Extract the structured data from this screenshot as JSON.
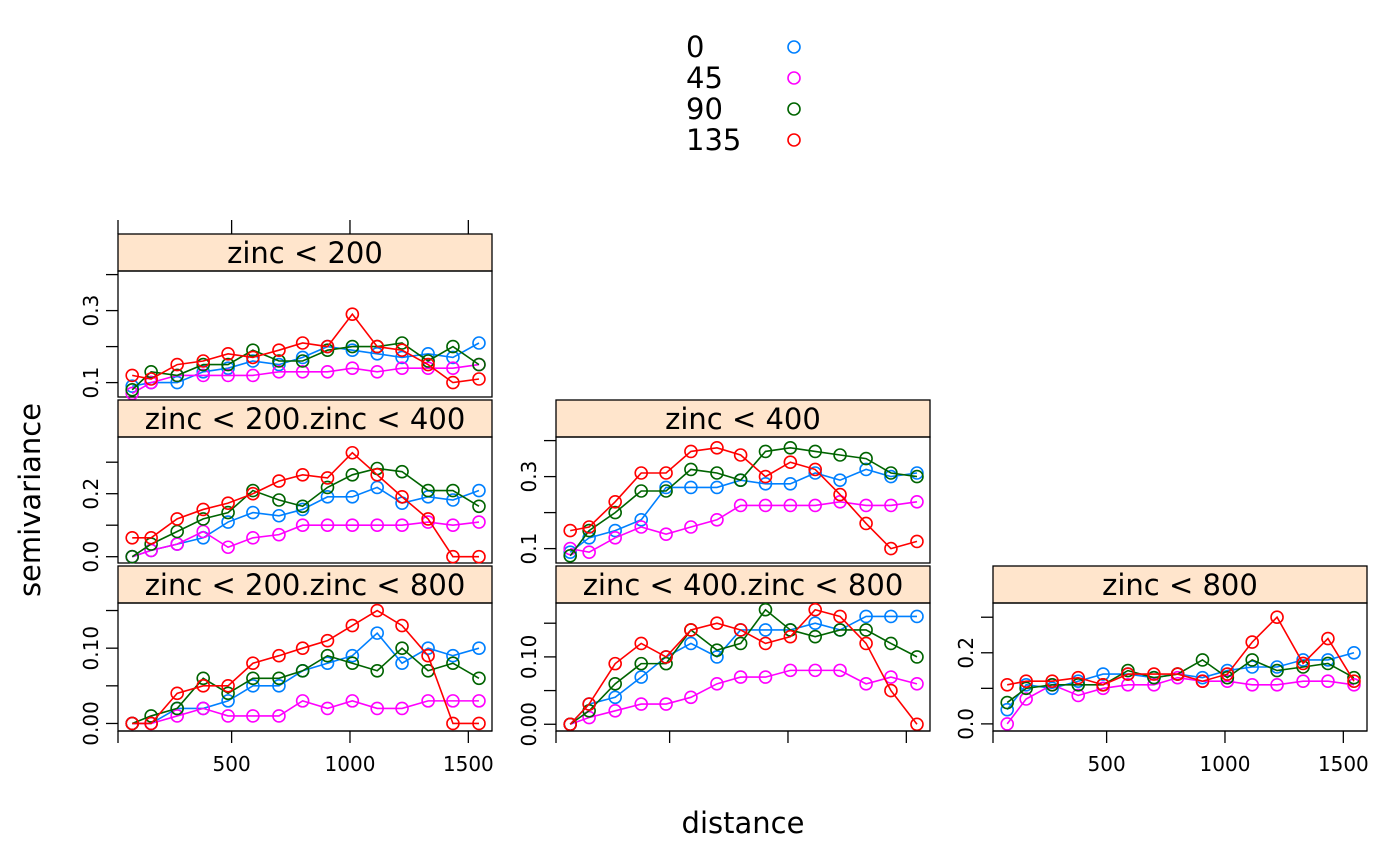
{
  "chart_data": {
    "type": "line",
    "xlabel": "distance",
    "ylabel": "semivariance",
    "legend": {
      "placement": "top-center",
      "entries": [
        {
          "label": "0",
          "color": "#0080ff"
        },
        {
          "label": "45",
          "color": "#ff00ff"
        },
        {
          "label": "90",
          "color": "#006400"
        },
        {
          "label": "135",
          "color": "#ff0000"
        }
      ]
    },
    "x_ticks": [
      "500",
      "1000",
      "1500"
    ],
    "xlim": [
      20,
      1600
    ],
    "x": [
      80,
      160,
      270,
      380,
      485,
      590,
      700,
      800,
      905,
      1010,
      1115,
      1220,
      1330,
      1435,
      1545
    ],
    "panels": [
      {
        "title": "zinc < 200",
        "ylim": [
          0.06,
          0.41
        ],
        "y_ticks": [
          "0.1",
          "0.3"
        ],
        "series": [
          {
            "name": "0",
            "values": [
              0.09,
              0.1,
              0.1,
              0.13,
              0.14,
              0.16,
              0.15,
              0.17,
              0.2,
              0.19,
              0.18,
              0.17,
              0.18,
              0.17,
              0.21
            ]
          },
          {
            "name": "45",
            "values": [
              0.07,
              0.1,
              0.12,
              0.12,
              0.12,
              0.12,
              0.13,
              0.13,
              0.13,
              0.14,
              0.13,
              0.14,
              0.14,
              0.14,
              0.15
            ]
          },
          {
            "name": "90",
            "values": [
              0.08,
              0.13,
              0.12,
              0.15,
              0.15,
              0.19,
              0.16,
              0.16,
              0.19,
              0.2,
              0.2,
              0.21,
              0.16,
              0.2,
              0.15
            ]
          },
          {
            "name": "135",
            "values": [
              0.12,
              0.11,
              0.15,
              0.16,
              0.18,
              0.17,
              0.19,
              0.21,
              0.2,
              0.29,
              0.2,
              0.19,
              0.15,
              0.1,
              0.11
            ]
          }
        ]
      },
      {
        "title": "zinc < 200.zinc < 400",
        "ylim": [
          -0.02,
          0.38
        ],
        "y_ticks": [
          "0.0",
          "0.2"
        ],
        "series": [
          {
            "name": "0",
            "values": [
              0.0,
              0.02,
              0.04,
              0.06,
              0.11,
              0.14,
              0.13,
              0.15,
              0.19,
              0.19,
              0.22,
              0.17,
              0.19,
              0.18,
              0.21
            ]
          },
          {
            "name": "45",
            "values": [
              0.0,
              0.02,
              0.04,
              0.08,
              0.03,
              0.06,
              0.07,
              0.1,
              0.1,
              0.1,
              0.1,
              0.1,
              0.11,
              0.1,
              0.11
            ]
          },
          {
            "name": "90",
            "values": [
              0.0,
              0.04,
              0.08,
              0.12,
              0.14,
              0.21,
              0.18,
              0.16,
              0.22,
              0.26,
              0.28,
              0.27,
              0.21,
              0.21,
              0.16
            ]
          },
          {
            "name": "135",
            "values": [
              0.06,
              0.06,
              0.12,
              0.15,
              0.17,
              0.2,
              0.24,
              0.26,
              0.25,
              0.33,
              0.26,
              0.19,
              0.12,
              0.0,
              0.0
            ]
          }
        ]
      },
      {
        "title": "zinc < 200.zinc < 800",
        "ylim": [
          -0.01,
          0.16
        ],
        "y_ticks": [
          "0.00",
          "0.10"
        ],
        "series": [
          {
            "name": "0",
            "values": [
              0.0,
              0.0,
              0.02,
              0.02,
              0.03,
              0.05,
              0.05,
              0.07,
              0.08,
              0.09,
              0.12,
              0.08,
              0.1,
              0.09,
              0.1
            ]
          },
          {
            "name": "45",
            "values": [
              0.0,
              0.0,
              0.01,
              0.02,
              0.01,
              0.01,
              0.01,
              0.03,
              0.02,
              0.03,
              0.02,
              0.02,
              0.03,
              0.03,
              0.03
            ]
          },
          {
            "name": "90",
            "values": [
              0.0,
              0.01,
              0.02,
              0.06,
              0.04,
              0.06,
              0.06,
              0.07,
              0.09,
              0.08,
              0.07,
              0.1,
              0.07,
              0.08,
              0.06
            ]
          },
          {
            "name": "135",
            "values": [
              0.0,
              0.0,
              0.04,
              0.05,
              0.05,
              0.08,
              0.09,
              0.1,
              0.11,
              0.13,
              0.15,
              0.13,
              0.09,
              0.0,
              0.0
            ]
          }
        ]
      },
      {
        "title": "zinc < 400",
        "ylim": [
          0.06,
          0.41
        ],
        "y_ticks": [
          "0.1",
          "0.3"
        ],
        "series": [
          {
            "name": "0",
            "values": [
              0.09,
              0.13,
              0.15,
              0.18,
              0.27,
              0.27,
              0.27,
              0.29,
              0.28,
              0.28,
              0.31,
              0.29,
              0.32,
              0.3,
              0.31
            ]
          },
          {
            "name": "45",
            "values": [
              0.1,
              0.09,
              0.13,
              0.16,
              0.14,
              0.16,
              0.18,
              0.22,
              0.22,
              0.22,
              0.22,
              0.23,
              0.22,
              0.22,
              0.23
            ]
          },
          {
            "name": "90",
            "values": [
              0.08,
              0.15,
              0.2,
              0.26,
              0.26,
              0.32,
              0.31,
              0.29,
              0.37,
              0.38,
              0.37,
              0.36,
              0.35,
              0.31,
              0.3
            ]
          },
          {
            "name": "135",
            "values": [
              0.15,
              0.16,
              0.23,
              0.31,
              0.31,
              0.37,
              0.38,
              0.36,
              0.3,
              0.34,
              0.32,
              0.25,
              0.17,
              0.1,
              0.12
            ]
          }
        ]
      },
      {
        "title": "zinc < 400.zinc < 800",
        "ylim": [
          -0.01,
          0.18
        ],
        "y_ticks": [
          "0.00",
          "0.10"
        ],
        "series": [
          {
            "name": "0",
            "values": [
              0.0,
              0.03,
              0.04,
              0.07,
              0.1,
              0.12,
              0.1,
              0.14,
              0.14,
              0.14,
              0.15,
              0.14,
              0.16,
              0.16,
              0.16
            ]
          },
          {
            "name": "45",
            "values": [
              0.0,
              0.01,
              0.02,
              0.03,
              0.03,
              0.04,
              0.06,
              0.07,
              0.07,
              0.08,
              0.08,
              0.08,
              0.06,
              0.07,
              0.06
            ]
          },
          {
            "name": "90",
            "values": [
              0.0,
              0.02,
              0.06,
              0.09,
              0.09,
              0.14,
              0.11,
              0.12,
              0.17,
              0.14,
              0.13,
              0.14,
              0.14,
              0.12,
              0.1
            ]
          },
          {
            "name": "135",
            "values": [
              0.0,
              0.03,
              0.09,
              0.12,
              0.1,
              0.14,
              0.15,
              0.14,
              0.12,
              0.13,
              0.17,
              0.16,
              0.12,
              0.05,
              0.0
            ]
          }
        ]
      },
      {
        "title": "zinc < 800",
        "ylim": [
          -0.02,
          0.34
        ],
        "y_ticks": [
          "0.0",
          "0.2"
        ],
        "series": [
          {
            "name": "0",
            "values": [
              0.04,
              0.11,
              0.1,
              0.12,
              0.14,
              0.14,
              0.13,
              0.14,
              0.13,
              0.15,
              0.16,
              0.16,
              0.18,
              0.18,
              0.2
            ]
          },
          {
            "name": "45",
            "values": [
              0.0,
              0.07,
              0.11,
              0.08,
              0.1,
              0.11,
              0.11,
              0.13,
              0.12,
              0.12,
              0.11,
              0.11,
              0.12,
              0.12,
              0.11
            ]
          },
          {
            "name": "90",
            "values": [
              0.06,
              0.1,
              0.11,
              0.11,
              0.11,
              0.15,
              0.13,
              0.14,
              0.18,
              0.13,
              0.18,
              0.15,
              0.16,
              0.17,
              0.13
            ]
          },
          {
            "name": "135",
            "values": [
              0.11,
              0.12,
              0.12,
              0.13,
              0.11,
              0.14,
              0.14,
              0.14,
              0.12,
              0.14,
              0.23,
              0.3,
              0.17,
              0.24,
              0.12
            ]
          }
        ]
      }
    ]
  }
}
